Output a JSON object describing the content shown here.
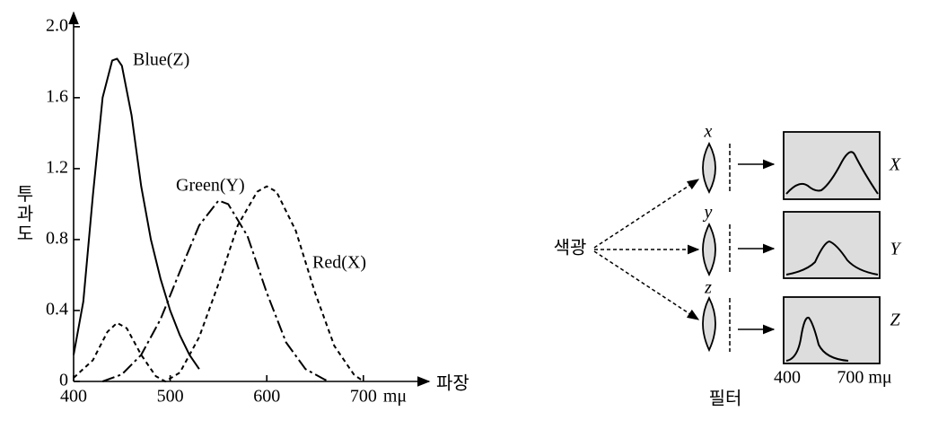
{
  "chart_data": {
    "type": "line",
    "xlabel": "파장",
    "xunit": "mμ",
    "ylabel": "투과도",
    "xlim": [
      400,
      768
    ],
    "ylim": [
      0,
      2.08
    ],
    "xticks": [
      400,
      500,
      600,
      {
        "value": 700,
        "label": "700"
      }
    ],
    "yticks": [
      0,
      0.4,
      0.8,
      1.2,
      1.6,
      {
        "value": 2,
        "label": "2.0"
      }
    ],
    "series": [
      {
        "name": "Blue(Z)",
        "color": "#000000",
        "style": "solid",
        "x": [
          400,
          410,
          420,
          430,
          440,
          445,
          450,
          460,
          470,
          480,
          490,
          500,
          510,
          520,
          530
        ],
        "values": [
          0.15,
          0.45,
          1.05,
          1.6,
          1.81,
          1.82,
          1.78,
          1.5,
          1.1,
          0.8,
          0.58,
          0.4,
          0.26,
          0.15,
          0.07
        ]
      },
      {
        "name": "Green(Y)",
        "color": "#000000",
        "style": "dashdot",
        "x": [
          430,
          450,
          470,
          490,
          510,
          530,
          550,
          560,
          580,
          600,
          620,
          640,
          660,
          665
        ],
        "values": [
          0,
          0.04,
          0.15,
          0.35,
          0.62,
          0.88,
          1.02,
          1.0,
          0.82,
          0.5,
          0.22,
          0.07,
          0.01,
          0
        ]
      },
      {
        "name": "Red(X)",
        "color": "#000000",
        "style": "dashed",
        "x": [
          400,
          420,
          435,
          445,
          455,
          470,
          485,
          495,
          510,
          530,
          550,
          570,
          590,
          600,
          610,
          630,
          650,
          670,
          690,
          700
        ],
        "values": [
          0.02,
          0.12,
          0.28,
          0.33,
          0.3,
          0.15,
          0.03,
          0,
          0.05,
          0.25,
          0.55,
          0.88,
          1.07,
          1.1,
          1.07,
          0.85,
          0.5,
          0.2,
          0.04,
          0
        ]
      }
    ]
  },
  "diagram": {
    "source_label": "색광",
    "filter_label": "필터",
    "channels": [
      {
        "lens": "x",
        "output": "X"
      },
      {
        "lens": "y",
        "output": "Y"
      },
      {
        "lens": "z",
        "output": "Z"
      }
    ],
    "axis_start": "400",
    "axis_end": "700 mμ"
  }
}
